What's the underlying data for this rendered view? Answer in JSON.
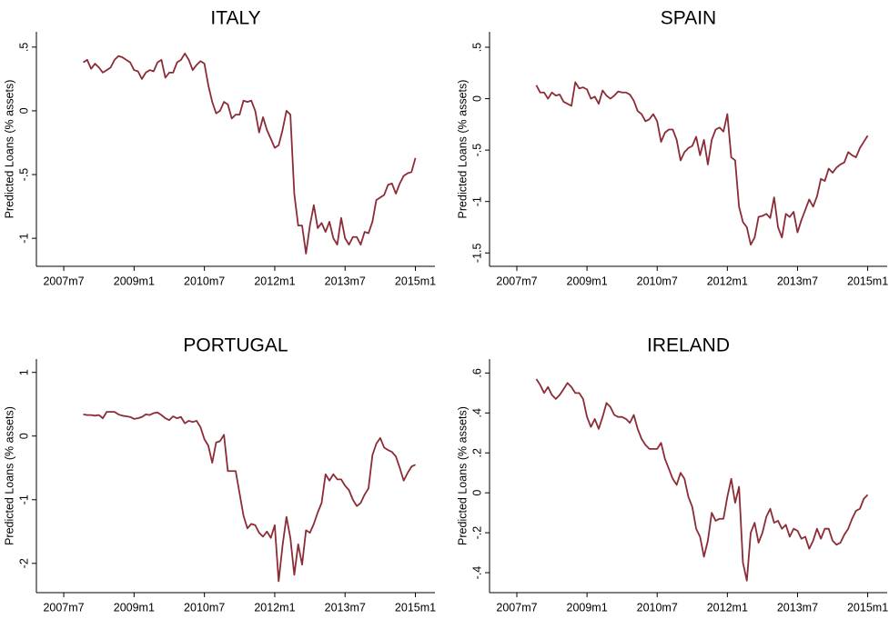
{
  "chart_data": [
    {
      "type": "line",
      "title": "ITALY",
      "y_label": "Predicted Loans (% assets)",
      "color": "#8b2c36",
      "x": [
        575,
        576,
        577,
        578,
        579,
        580,
        581,
        582,
        583,
        584,
        585,
        586,
        587,
        588,
        589,
        590,
        591,
        592,
        593,
        594,
        595,
        596,
        597,
        598,
        599,
        600,
        601,
        602,
        603,
        604,
        605,
        606,
        607,
        608,
        609,
        610,
        611,
        612,
        613,
        614,
        615,
        616,
        617,
        618,
        619,
        620,
        621,
        622,
        623,
        624,
        625,
        626,
        627,
        628,
        629,
        630,
        631,
        632,
        633,
        634,
        635,
        636,
        637,
        638,
        639,
        640,
        641,
        642,
        643,
        644,
        645,
        646,
        647,
        648,
        649,
        650,
        651,
        652,
        653,
        654,
        655,
        656,
        657,
        658,
        659,
        660
      ],
      "values": [
        0.38,
        0.4,
        0.33,
        0.37,
        0.34,
        0.3,
        0.32,
        0.34,
        0.4,
        0.43,
        0.42,
        0.4,
        0.38,
        0.32,
        0.31,
        0.25,
        0.3,
        0.32,
        0.31,
        0.38,
        0.4,
        0.26,
        0.3,
        0.3,
        0.38,
        0.4,
        0.45,
        0.4,
        0.32,
        0.36,
        0.39,
        0.37,
        0.2,
        0.07,
        -0.02,
        0.0,
        0.07,
        0.05,
        -0.06,
        -0.03,
        -0.03,
        0.08,
        0.07,
        0.08,
        0.0,
        -0.17,
        -0.05,
        -0.15,
        -0.22,
        -0.29,
        -0.27,
        -0.15,
        0.0,
        -0.03,
        -0.65,
        -0.9,
        -0.9,
        -1.12,
        -0.9,
        -0.74,
        -0.92,
        -0.88,
        -0.95,
        -0.87,
        -1.0,
        -1.05,
        -0.84,
        -1.0,
        -1.05,
        -0.99,
        -0.99,
        -1.05,
        -0.95,
        -0.96,
        -0.87,
        -0.7,
        -0.68,
        -0.66,
        -0.58,
        -0.57,
        -0.65,
        -0.57,
        -0.51,
        -0.49,
        -0.48,
        -0.37
      ],
      "xlim": [
        563,
        665
      ],
      "xticks": [
        {
          "value": 570,
          "label": "2007m7"
        },
        {
          "value": 588,
          "label": "2009m1"
        },
        {
          "value": 606,
          "label": "2010m7"
        },
        {
          "value": 624,
          "label": "2012m1"
        },
        {
          "value": 642,
          "label": "2013m7"
        },
        {
          "value": 660,
          "label": "2015m1"
        }
      ],
      "ylim": [
        -1.22,
        0.62
      ],
      "yticks": [
        -1,
        {
          "value": -0.5,
          "label": "-.5"
        },
        0,
        {
          "value": 0.5,
          "label": ".5"
        }
      ]
    },
    {
      "type": "line",
      "title": "SPAIN",
      "y_label": "Predicted Loans (% assets)",
      "color": "#8b2c36",
      "x": [
        575,
        576,
        577,
        578,
        579,
        580,
        581,
        582,
        583,
        584,
        585,
        586,
        587,
        588,
        589,
        590,
        591,
        592,
        593,
        594,
        595,
        596,
        597,
        598,
        599,
        600,
        601,
        602,
        603,
        604,
        605,
        606,
        607,
        608,
        609,
        610,
        611,
        612,
        613,
        614,
        615,
        616,
        617,
        618,
        619,
        620,
        621,
        622,
        623,
        624,
        625,
        626,
        627,
        628,
        629,
        630,
        631,
        632,
        633,
        634,
        635,
        636,
        637,
        638,
        639,
        640,
        641,
        642,
        643,
        644,
        645,
        646,
        647,
        648,
        649,
        650,
        651,
        652,
        653,
        654,
        655,
        656,
        657,
        658,
        659,
        660
      ],
      "values": [
        0.13,
        0.06,
        0.06,
        0.0,
        0.06,
        0.03,
        0.04,
        -0.03,
        -0.05,
        -0.07,
        0.16,
        0.1,
        0.11,
        0.09,
        0.0,
        0.02,
        -0.05,
        0.08,
        0.03,
        0.0,
        0.03,
        0.07,
        0.06,
        0.06,
        0.04,
        -0.02,
        -0.12,
        -0.15,
        -0.22,
        -0.2,
        -0.15,
        -0.22,
        -0.42,
        -0.33,
        -0.3,
        -0.3,
        -0.4,
        -0.6,
        -0.52,
        -0.48,
        -0.46,
        -0.37,
        -0.55,
        -0.4,
        -0.64,
        -0.4,
        -0.3,
        -0.28,
        -0.32,
        -0.15,
        -0.57,
        -0.6,
        -1.05,
        -1.2,
        -1.25,
        -1.42,
        -1.35,
        -1.15,
        -1.14,
        -1.12,
        -1.16,
        -0.96,
        -1.25,
        -1.35,
        -1.12,
        -1.15,
        -1.1,
        -1.3,
        -1.18,
        -1.08,
        -0.98,
        -1.05,
        -0.95,
        -0.78,
        -0.8,
        -0.68,
        -0.72,
        -0.67,
        -0.64,
        -0.62,
        -0.52,
        -0.55,
        -0.57,
        -0.48,
        -0.42,
        -0.36
      ],
      "xlim": [
        563,
        665
      ],
      "xticks": [
        {
          "value": 570,
          "label": "2007m7"
        },
        {
          "value": 588,
          "label": "2009m1"
        },
        {
          "value": 606,
          "label": "2010m7"
        },
        {
          "value": 624,
          "label": "2012m1"
        },
        {
          "value": 642,
          "label": "2013m7"
        },
        {
          "value": 660,
          "label": "2015m1"
        }
      ],
      "ylim": [
        -1.63,
        0.65
      ],
      "yticks": [
        {
          "value": -1.5,
          "label": "-1.5"
        },
        -1,
        {
          "value": -0.5,
          "label": "-.5"
        },
        0,
        {
          "value": 0.5,
          "label": ".5"
        }
      ]
    },
    {
      "type": "line",
      "title": "PORTUGAL",
      "y_label": "Predicted Loans (% assets)",
      "color": "#8b2c36",
      "x": [
        575,
        576,
        577,
        578,
        579,
        580,
        581,
        582,
        583,
        584,
        585,
        586,
        587,
        588,
        589,
        590,
        591,
        592,
        593,
        594,
        595,
        596,
        597,
        598,
        599,
        600,
        601,
        602,
        603,
        604,
        605,
        606,
        607,
        608,
        609,
        610,
        611,
        612,
        613,
        614,
        615,
        616,
        617,
        618,
        619,
        620,
        621,
        622,
        623,
        624,
        625,
        626,
        627,
        628,
        629,
        630,
        631,
        632,
        633,
        634,
        635,
        636,
        637,
        638,
        639,
        640,
        641,
        642,
        643,
        644,
        645,
        646,
        647,
        648,
        649,
        650,
        651,
        652,
        653,
        654,
        655,
        656,
        657,
        658,
        659,
        660
      ],
      "values": [
        0.34,
        0.33,
        0.33,
        0.32,
        0.33,
        0.28,
        0.38,
        0.38,
        0.38,
        0.34,
        0.32,
        0.31,
        0.3,
        0.27,
        0.28,
        0.3,
        0.34,
        0.33,
        0.36,
        0.37,
        0.33,
        0.28,
        0.25,
        0.31,
        0.28,
        0.3,
        0.2,
        0.24,
        0.22,
        0.24,
        0.14,
        -0.05,
        -0.15,
        -0.42,
        -0.1,
        -0.08,
        0.02,
        -0.55,
        -0.55,
        -0.55,
        -0.9,
        -1.25,
        -1.45,
        -1.38,
        -1.4,
        -1.52,
        -1.58,
        -1.5,
        -1.6,
        -1.4,
        -2.28,
        -1.72,
        -1.27,
        -1.6,
        -2.18,
        -1.7,
        -2.02,
        -1.48,
        -1.52,
        -1.38,
        -1.2,
        -1.05,
        -0.6,
        -0.7,
        -0.6,
        -0.68,
        -0.68,
        -0.78,
        -0.85,
        -1.0,
        -1.1,
        -1.05,
        -0.92,
        -0.82,
        -0.3,
        -0.12,
        -0.03,
        -0.18,
        -0.22,
        -0.25,
        -0.32,
        -0.5,
        -0.7,
        -0.58,
        -0.48,
        -0.45
      ],
      "xlim": [
        563,
        665
      ],
      "xticks": [
        {
          "value": 570,
          "label": "2007m7"
        },
        {
          "value": 588,
          "label": "2009m1"
        },
        {
          "value": 606,
          "label": "2010m7"
        },
        {
          "value": 624,
          "label": "2012m1"
        },
        {
          "value": 642,
          "label": "2013m7"
        },
        {
          "value": 660,
          "label": "2015m1"
        }
      ],
      "ylim": [
        -2.46,
        1.21
      ],
      "yticks": [
        -2,
        -1,
        0,
        1
      ]
    },
    {
      "type": "line",
      "title": "IRELAND",
      "y_label": "Predicted Loans (% assets)",
      "color": "#8b2c36",
      "x": [
        575,
        576,
        577,
        578,
        579,
        580,
        581,
        582,
        583,
        584,
        585,
        586,
        587,
        588,
        589,
        590,
        591,
        592,
        593,
        594,
        595,
        596,
        597,
        598,
        599,
        600,
        601,
        602,
        603,
        604,
        605,
        606,
        607,
        608,
        609,
        610,
        611,
        612,
        613,
        614,
        615,
        616,
        617,
        618,
        619,
        620,
        621,
        622,
        623,
        624,
        625,
        626,
        627,
        628,
        629,
        630,
        631,
        632,
        633,
        634,
        635,
        636,
        637,
        638,
        639,
        640,
        641,
        642,
        643,
        644,
        645,
        646,
        647,
        648,
        649,
        650,
        651,
        652,
        653,
        654,
        655,
        656,
        657,
        658,
        659,
        660
      ],
      "values": [
        0.57,
        0.54,
        0.5,
        0.53,
        0.49,
        0.47,
        0.49,
        0.52,
        0.55,
        0.53,
        0.5,
        0.5,
        0.47,
        0.38,
        0.33,
        0.37,
        0.32,
        0.38,
        0.45,
        0.43,
        0.39,
        0.38,
        0.38,
        0.37,
        0.35,
        0.39,
        0.32,
        0.27,
        0.24,
        0.22,
        0.22,
        0.22,
        0.25,
        0.17,
        0.12,
        0.07,
        0.04,
        0.1,
        0.07,
        -0.02,
        -0.07,
        -0.18,
        -0.22,
        -0.32,
        -0.24,
        -0.1,
        -0.14,
        -0.13,
        -0.13,
        -0.02,
        0.07,
        -0.05,
        0.03,
        -0.35,
        -0.44,
        -0.2,
        -0.15,
        -0.25,
        -0.2,
        -0.12,
        -0.08,
        -0.15,
        -0.14,
        -0.18,
        -0.16,
        -0.22,
        -0.18,
        -0.19,
        -0.23,
        -0.22,
        -0.28,
        -0.24,
        -0.18,
        -0.23,
        -0.18,
        -0.18,
        -0.24,
        -0.26,
        -0.25,
        -0.21,
        -0.18,
        -0.13,
        -0.09,
        -0.08,
        -0.03,
        -0.01
      ],
      "xlim": [
        563,
        665
      ],
      "xticks": [
        {
          "value": 570,
          "label": "2007m7"
        },
        {
          "value": 588,
          "label": "2009m1"
        },
        {
          "value": 606,
          "label": "2010m7"
        },
        {
          "value": 624,
          "label": "2012m1"
        },
        {
          "value": 642,
          "label": "2013m7"
        },
        {
          "value": 660,
          "label": "2015m1"
        }
      ],
      "ylim": [
        -0.5,
        0.67
      ],
      "yticks": [
        {
          "value": -0.4,
          "label": "-.4"
        },
        {
          "value": -0.2,
          "label": "-.2"
        },
        0,
        {
          "value": 0.2,
          "label": ".2"
        },
        {
          "value": 0.4,
          "label": ".4"
        },
        {
          "value": 0.6,
          "label": ".6"
        }
      ]
    }
  ]
}
